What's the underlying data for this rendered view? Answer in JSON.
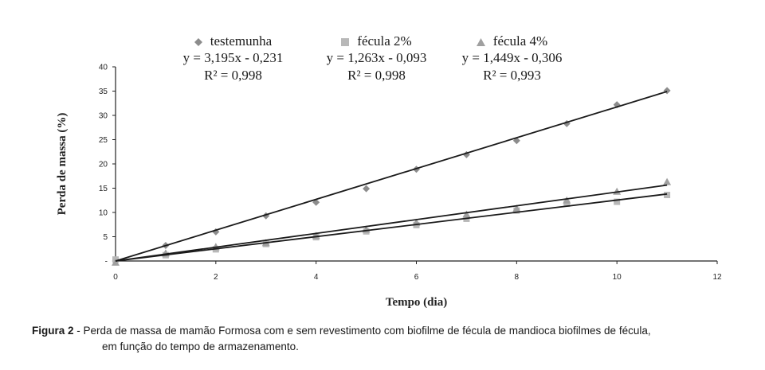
{
  "chart_data": {
    "type": "scatter",
    "xlabel": "Tempo (dia)",
    "ylabel": "Perda de massa (%)",
    "xlim": [
      0,
      12
    ],
    "ylim": [
      0,
      40
    ],
    "x_ticks": [
      "0",
      "2",
      "4",
      "6",
      "8",
      "10",
      "12"
    ],
    "y_ticks": [
      "-",
      "5",
      "10",
      "15",
      "20",
      "25",
      "30",
      "35",
      "40"
    ],
    "grid": false,
    "legend_position": "top",
    "series": [
      {
        "name": "testemunha",
        "marker": "diamond",
        "color": "#8c8c8c",
        "x": [
          0,
          1,
          2,
          3,
          4,
          5,
          6,
          7,
          8,
          9,
          10,
          11
        ],
        "y": [
          0,
          3.2,
          6.0,
          9.3,
          12.1,
          14.9,
          18.9,
          21.9,
          24.8,
          28.3,
          32.2,
          35.1
        ],
        "equation": "y = 3,195x  - 0,231",
        "r2": "R² = 0,998",
        "trend": {
          "slope": 3.195,
          "intercept": -0.231
        }
      },
      {
        "name": "fécula 2%",
        "marker": "square",
        "color": "#b8b8b8",
        "x": [
          0,
          1,
          2,
          3,
          4,
          5,
          6,
          7,
          8,
          9,
          10,
          11
        ],
        "y": [
          0.3,
          1.2,
          2.4,
          3.5,
          4.9,
          6.1,
          7.4,
          8.7,
          10.4,
          11.8,
          12.2,
          13.6
        ],
        "equation": "y = 1,263x  - 0,093",
        "r2": "R² = 0,998",
        "trend": {
          "slope": 1.263,
          "intercept": -0.093
        }
      },
      {
        "name": "fécula 4%",
        "marker": "triangle",
        "color": "#a0a0a0",
        "x": [
          0,
          1,
          2,
          3,
          4,
          5,
          6,
          7,
          8,
          9,
          10,
          11
        ],
        "y": [
          -0.3,
          1.6,
          2.9,
          3.7,
          5.2,
          6.5,
          7.9,
          9.6,
          10.8,
          12.5,
          14.3,
          16.3
        ],
        "equation": "y = 1,449x  - 0,306",
        "r2": "R² = 0,993",
        "trend": {
          "slope": 1.449,
          "intercept": -0.306
        }
      }
    ]
  },
  "caption": {
    "label": "Figura 2",
    "text": " - Perda de massa de mamão Formosa com e sem revestimento com biofilme de fécula de mandioca biofilmes de fécula,",
    "text2": "em função do tempo de armazenamento."
  }
}
